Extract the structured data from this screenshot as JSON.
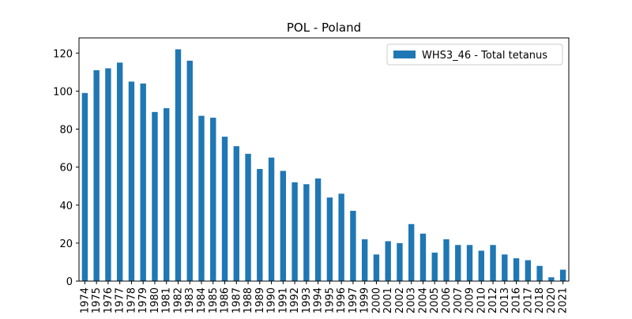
{
  "chart_data": {
    "type": "bar",
    "title": "POL - Poland",
    "categories": [
      "1974",
      "1975",
      "1976",
      "1977",
      "1978",
      "1979",
      "1980",
      "1981",
      "1982",
      "1983",
      "1984",
      "1985",
      "1986",
      "1987",
      "1988",
      "1989",
      "1990",
      "1991",
      "1992",
      "1993",
      "1994",
      "1995",
      "1996",
      "1997",
      "1999",
      "2000",
      "2001",
      "2002",
      "2003",
      "2004",
      "2005",
      "2006",
      "2007",
      "2009",
      "2010",
      "2012",
      "2013",
      "2016",
      "2017",
      "2018",
      "2020",
      "2021"
    ],
    "series": [
      {
        "name": "WHS3_46 - Total tetanus",
        "color": "#1f77b4",
        "values": [
          99,
          111,
          112,
          115,
          105,
          104,
          89,
          91,
          122,
          116,
          87,
          86,
          76,
          71,
          67,
          59,
          65,
          58,
          52,
          51,
          54,
          44,
          46,
          37,
          22,
          14,
          21,
          20,
          30,
          25,
          15,
          22,
          19,
          19,
          16,
          19,
          14,
          12,
          11,
          8,
          2,
          6
        ]
      }
    ],
    "ylim": [
      0,
      128
    ],
    "yticks": [
      0,
      20,
      40,
      60,
      80,
      100,
      120
    ],
    "legend": "upper right"
  }
}
